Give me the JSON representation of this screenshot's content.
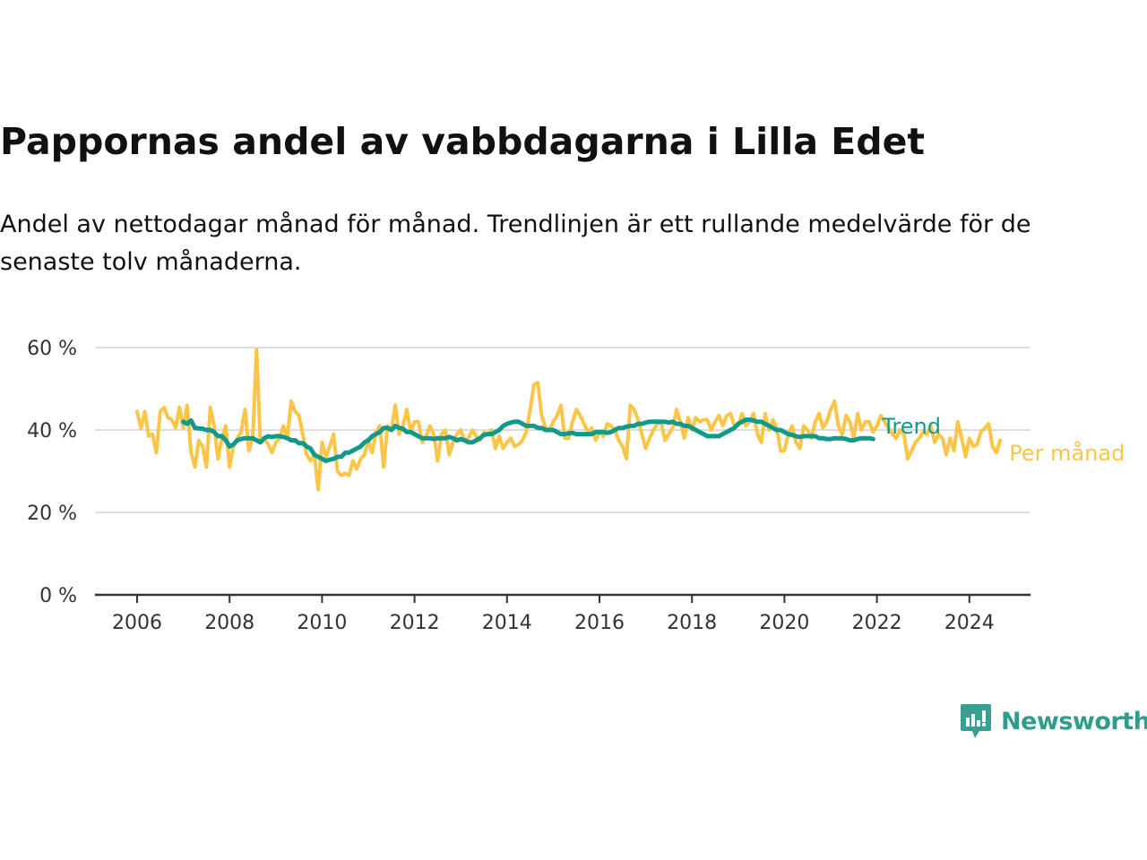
{
  "title": "Pappornas andel av vabbdagarna i Lilla Edet",
  "subtitle": "Andel av nettodagar månad för månad. Trendlinjen är ett rullande medelvärde för de senaste tolv månaderna.",
  "brand": {
    "name": "Newsworthy",
    "icon": "newsworthy-logo-icon",
    "color": "#3a9e90"
  },
  "colors": {
    "trend": "#119a8a",
    "monthly": "#fbc548",
    "grid": "#dddddd",
    "axis": "#333333"
  },
  "chart_data": {
    "type": "line",
    "x_unit": "month",
    "ylim": [
      0,
      60
    ],
    "xlim": [
      "2006-01",
      "2024-12"
    ],
    "y_ticks": [
      0,
      20,
      40,
      60
    ],
    "y_tick_labels": [
      "0 %",
      "20 %",
      "40 %",
      "60 %"
    ],
    "x_ticks": [
      "2006-01",
      "2008-01",
      "2010-01",
      "2012-01",
      "2014-01",
      "2016-01",
      "2018-01",
      "2020-01",
      "2022-01",
      "2024-01"
    ],
    "x_tick_labels": [
      "2006",
      "2008",
      "2010",
      "2012",
      "2014",
      "2016",
      "2018",
      "2020",
      "2022",
      "2024"
    ],
    "grid": "horizontal",
    "legend": "end-labels-right",
    "series": [
      {
        "name": "Per månad",
        "color": "#fbc548",
        "start": "2006-01",
        "values": [
          44.5,
          40.5,
          44.5,
          38.5,
          39.0,
          34.5,
          44.5,
          45.5,
          43.0,
          42.5,
          40.5,
          45.5,
          40.5,
          46.0,
          34.5,
          31.0,
          37.5,
          36.0,
          31.0,
          45.5,
          41.0,
          33.0,
          38.0,
          41.0,
          31.0,
          36.0,
          38.0,
          39.5,
          45.0,
          35.0,
          38.0,
          59.5,
          37.0,
          38.0,
          36.5,
          34.5,
          37.0,
          38.0,
          41.0,
          38.0,
          47.0,
          44.5,
          43.5,
          39.0,
          34.0,
          32.5,
          34.0,
          25.5,
          37.0,
          33.5,
          36.0,
          39.0,
          30.0,
          29.0,
          29.5,
          29.0,
          32.5,
          30.5,
          33.0,
          34.0,
          37.5,
          34.5,
          39.5,
          41.0,
          31.0,
          41.0,
          40.0,
          46.0,
          39.0,
          41.0,
          45.0,
          39.5,
          42.0,
          42.0,
          37.0,
          38.5,
          41.0,
          39.0,
          32.5,
          39.0,
          40.0,
          34.0,
          37.0,
          39.0,
          40.0,
          37.5,
          38.0,
          40.0,
          38.5,
          37.5,
          39.5,
          39.0,
          40.0,
          35.5,
          38.5,
          35.5,
          37.0,
          38.0,
          36.0,
          36.5,
          37.5,
          39.5,
          45.0,
          51.0,
          51.5,
          43.5,
          40.5,
          40.0,
          42.0,
          43.5,
          46.0,
          38.0,
          38.0,
          42.0,
          45.0,
          43.5,
          41.5,
          39.5,
          40.5,
          37.5,
          39.5,
          38.5,
          41.5,
          41.0,
          40.0,
          37.5,
          36.0,
          33.0,
          46.0,
          45.0,
          42.5,
          39.0,
          35.5,
          38.0,
          40.0,
          41.5,
          42.0,
          37.5,
          39.0,
          40.5,
          45.0,
          42.0,
          38.0,
          43.0,
          40.0,
          43.0,
          42.0,
          42.5,
          42.5,
          40.0,
          42.0,
          43.5,
          41.0,
          43.5,
          44.0,
          41.0,
          41.0,
          44.0,
          41.0,
          42.0,
          44.0,
          39.0,
          37.0,
          44.0,
          40.0,
          42.5,
          40.5,
          35.0,
          35.0,
          39.0,
          41.0,
          37.0,
          35.5,
          41.0,
          40.0,
          38.0,
          42.0,
          44.0,
          40.5,
          42.0,
          45.0,
          47.0,
          41.0,
          39.0,
          43.5,
          42.0,
          38.0,
          44.0,
          40.0,
          42.0,
          42.0,
          39.5,
          41.0,
          43.5,
          42.0,
          40.5,
          39.0,
          38.0,
          40.0,
          39.0,
          33.0,
          35.0,
          37.0,
          38.0,
          39.5,
          39.0,
          41.0,
          37.0,
          39.0,
          38.0,
          34.0,
          38.0,
          35.0,
          42.0,
          38.0,
          33.5,
          38.0,
          36.0,
          36.5,
          39.5,
          40.5,
          41.5,
          36.0,
          34.5,
          37.5
        ]
      },
      {
        "name": "Trend",
        "color": "#119a8a",
        "start": "2007-01",
        "values": [
          42.0,
          41.5,
          42.3,
          40.5,
          40.4,
          40.3,
          40.0,
          40.0,
          39.5,
          38.5,
          38.5,
          37.5,
          36.0,
          36.5,
          37.5,
          37.8,
          38.0,
          38.0,
          38.0,
          37.5,
          37.0,
          38.0,
          38.5,
          38.3,
          38.5,
          38.5,
          38.3,
          38.0,
          37.5,
          37.5,
          36.8,
          36.8,
          36.0,
          35.5,
          34.0,
          33.5,
          33.0,
          32.5,
          32.8,
          33.0,
          33.5,
          33.5,
          34.5,
          34.5,
          35.0,
          35.5,
          36.0,
          37.0,
          37.5,
          38.5,
          39.0,
          39.5,
          40.5,
          40.5,
          40.0,
          41.0,
          40.5,
          40.3,
          39.5,
          39.5,
          39.0,
          38.5,
          38.0,
          38.0,
          38.0,
          37.8,
          38.0,
          38.0,
          38.0,
          38.3,
          38.0,
          37.5,
          37.8,
          37.5,
          37.0,
          37.0,
          37.5,
          38.0,
          38.8,
          39.0,
          39.0,
          39.5,
          40.0,
          41.0,
          41.5,
          41.8,
          42.0,
          42.0,
          41.5,
          41.0,
          41.0,
          41.0,
          40.5,
          40.5,
          40.0,
          40.0,
          40.0,
          39.5,
          39.0,
          39.0,
          39.2,
          39.3,
          39.0,
          39.0,
          39.0,
          39.0,
          39.0,
          39.5,
          39.5,
          39.5,
          39.3,
          39.5,
          40.0,
          40.5,
          40.5,
          40.8,
          41.0,
          41.0,
          41.5,
          41.5,
          41.8,
          42.0,
          42.0,
          42.0,
          42.0,
          42.0,
          41.8,
          42.0,
          41.5,
          41.5,
          41.0,
          41.0,
          40.5,
          40.0,
          39.5,
          39.0,
          38.5,
          38.5,
          38.5,
          38.5,
          39.0,
          39.5,
          40.0,
          40.5,
          41.5,
          42.0,
          42.5,
          42.5,
          42.3,
          42.0,
          42.0,
          41.5,
          41.0,
          40.5,
          40.0,
          40.0,
          39.5,
          39.0,
          38.8,
          38.5,
          38.3,
          38.5,
          38.5,
          38.5,
          38.5,
          38.0,
          38.0,
          37.8,
          37.8,
          38.0,
          38.0,
          38.0,
          37.8,
          37.5,
          37.5,
          37.8,
          38.0,
          38.0,
          38.0,
          37.8
        ]
      }
    ]
  }
}
